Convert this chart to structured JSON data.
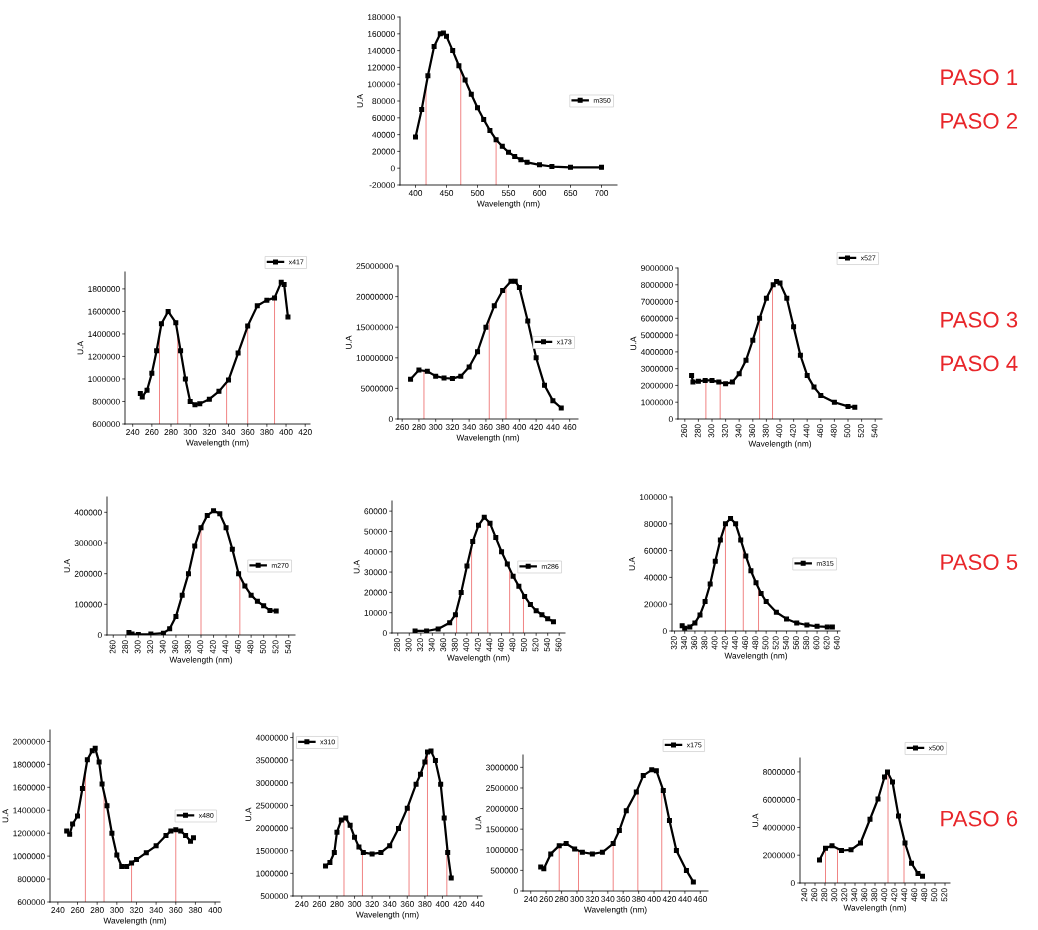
{
  "chart_data": [
    {
      "type": "line",
      "xlabel": "Wavelength (nm)",
      "ylabel": "U.A",
      "xlim": [
        375,
        725
      ],
      "xticks": [
        400,
        450,
        500,
        550,
        600,
        650,
        700
      ],
      "ylim": [
        -20000,
        180000
      ],
      "yticks": [
        -20000,
        0,
        20000,
        40000,
        60000,
        80000,
        100000,
        120000,
        140000,
        160000,
        180000
      ],
      "legend": "right",
      "marker": "square",
      "line_style": "solid",
      "series": [
        {
          "name": "m350",
          "color": "#000000",
          "x": [
            400,
            410,
            420,
            430,
            440,
            445,
            450,
            460,
            470,
            480,
            490,
            500,
            510,
            520,
            530,
            540,
            550,
            560,
            570,
            580,
            600,
            620,
            650,
            700
          ],
          "values": [
            37000,
            70000,
            110000,
            145000,
            160000,
            161000,
            157000,
            140000,
            122000,
            105000,
            88000,
            72000,
            58000,
            45000,
            34000,
            26000,
            19000,
            14000,
            10000,
            7000,
            4000,
            2000,
            1000,
            1000
          ]
        }
      ],
      "ref_lines": [
        {
          "axis": "x",
          "value": 417,
          "color": "#f08080"
        },
        {
          "axis": "x",
          "value": 473,
          "color": "#f08080"
        },
        {
          "axis": "x",
          "value": 530,
          "color": "#f08080"
        }
      ],
      "annotations": [
        "PASO 1",
        "PASO 2"
      ]
    },
    {
      "type": "line",
      "xlabel": "Wavelength (nm)",
      "ylabel": "U.A",
      "xlim": [
        232,
        425
      ],
      "xticks": [
        240,
        260,
        280,
        300,
        320,
        340,
        360,
        380,
        400,
        420
      ],
      "ylim": [
        600000,
        1950000
      ],
      "yticks": [
        600000,
        800000,
        1000000,
        1200000,
        1400000,
        1600000,
        1800000
      ],
      "legend": "top right",
      "marker": "square",
      "line_style": "solid",
      "series": [
        {
          "name": "x417",
          "color": "#000000",
          "x": [
            248,
            250,
            255,
            260,
            265,
            270,
            277,
            285,
            290,
            295,
            300,
            305,
            310,
            320,
            330,
            340,
            350,
            360,
            370,
            380,
            388,
            395,
            398,
            402
          ],
          "values": [
            870000,
            840000,
            900000,
            1050000,
            1250000,
            1490000,
            1600000,
            1500000,
            1250000,
            1000000,
            800000,
            770000,
            780000,
            820000,
            890000,
            990000,
            1230000,
            1470000,
            1650000,
            1700000,
            1720000,
            1860000,
            1840000,
            1550000
          ]
        }
      ],
      "ref_lines": [
        {
          "axis": "x",
          "value": 268,
          "color": "#f08080"
        },
        {
          "axis": "x",
          "value": 287,
          "color": "#f08080"
        },
        {
          "axis": "x",
          "value": 338,
          "color": "#f08080"
        },
        {
          "axis": "x",
          "value": 360,
          "color": "#f08080"
        },
        {
          "axis": "x",
          "value": 388,
          "color": "#f08080"
        }
      ]
    },
    {
      "type": "line",
      "xlabel": "Wavelength (nm)",
      "ylabel": "U.A",
      "xlim": [
        255,
        470
      ],
      "xticks": [
        260,
        280,
        300,
        320,
        340,
        360,
        380,
        400,
        420,
        440,
        460
      ],
      "ylim": [
        0,
        25000000
      ],
      "yticks": [
        0,
        5000000,
        10000000,
        15000000,
        20000000,
        25000000
      ],
      "legend": "right",
      "marker": "square",
      "line_style": "solid",
      "series": [
        {
          "name": "x173",
          "color": "#000000",
          "x": [
            270,
            280,
            290,
            300,
            310,
            320,
            330,
            340,
            350,
            360,
            370,
            380,
            390,
            395,
            400,
            410,
            420,
            430,
            440,
            450
          ],
          "values": [
            6500000,
            8000000,
            7800000,
            7000000,
            6700000,
            6600000,
            7000000,
            8500000,
            11000000,
            15000000,
            18500000,
            21000000,
            22500000,
            22500000,
            21500000,
            16000000,
            10000000,
            5500000,
            3000000,
            1800000
          ]
        }
      ],
      "ref_lines": [
        {
          "axis": "x",
          "value": 286,
          "color": "#f08080"
        },
        {
          "axis": "x",
          "value": 364,
          "color": "#f08080"
        },
        {
          "axis": "x",
          "value": 384,
          "color": "#f08080"
        }
      ]
    },
    {
      "type": "line",
      "xlabel": "Wavelength (nm)",
      "ylabel": "U.A",
      "xlim": [
        250,
        550
      ],
      "xticks": [
        260,
        280,
        300,
        320,
        340,
        360,
        380,
        400,
        420,
        440,
        460,
        480,
        500,
        520,
        540
      ],
      "ylim": [
        0,
        9000000
      ],
      "yticks": [
        0,
        1000000,
        2000000,
        3000000,
        4000000,
        5000000,
        6000000,
        7000000,
        8000000,
        9000000
      ],
      "legend": "top right",
      "marker": "square",
      "line_style": "solid",
      "series": [
        {
          "name": "x527",
          "color": "#000000",
          "x": [
            270,
            272,
            280,
            290,
            300,
            310,
            320,
            330,
            340,
            350,
            360,
            370,
            380,
            390,
            395,
            400,
            410,
            420,
            430,
            440,
            450,
            460,
            480,
            500,
            510
          ],
          "values": [
            2600000,
            2200000,
            2250000,
            2300000,
            2300000,
            2200000,
            2100000,
            2200000,
            2700000,
            3500000,
            4700000,
            6000000,
            7200000,
            8000000,
            8200000,
            8100000,
            7200000,
            5500000,
            3800000,
            2600000,
            1900000,
            1400000,
            1000000,
            750000,
            700000
          ]
        }
      ],
      "ref_lines": [
        {
          "axis": "x",
          "value": 291,
          "color": "#f08080"
        },
        {
          "axis": "x",
          "value": 312,
          "color": "#f08080"
        },
        {
          "axis": "x",
          "value": 370,
          "color": "#f08080"
        },
        {
          "axis": "x",
          "value": 389,
          "color": "#f08080"
        }
      ],
      "annotations": [
        "PASO 3",
        "PASO 4"
      ]
    },
    {
      "type": "line",
      "xlabel": "Wavelength (nm)",
      "ylabel": "U.A",
      "xlim": [
        250,
        550
      ],
      "xticks": [
        260,
        280,
        300,
        320,
        340,
        360,
        380,
        400,
        420,
        440,
        460,
        480,
        500,
        520,
        540
      ],
      "ylim": [
        0,
        450000
      ],
      "yticks": [
        0,
        100000,
        200000,
        300000,
        400000
      ],
      "legend": "right",
      "marker": "square",
      "line_style": "solid",
      "series": [
        {
          "name": "m270",
          "color": "#000000",
          "x": [
            285,
            290,
            300,
            320,
            340,
            350,
            360,
            370,
            380,
            390,
            400,
            410,
            420,
            430,
            440,
            450,
            460,
            470,
            480,
            490,
            500,
            510,
            520
          ],
          "values": [
            8000,
            3000,
            2000,
            3000,
            6000,
            20000,
            60000,
            130000,
            200000,
            290000,
            350000,
            390000,
            405000,
            395000,
            350000,
            280000,
            200000,
            160000,
            130000,
            110000,
            95000,
            80000,
            78000
          ]
        }
      ],
      "ref_lines": [
        {
          "axis": "x",
          "value": 400,
          "color": "#f08080"
        },
        {
          "axis": "x",
          "value": 462,
          "color": "#f08080"
        }
      ]
    },
    {
      "type": "line",
      "xlabel": "Wavelength (nm)",
      "ylabel": "U.A",
      "xlim": [
        270,
        570
      ],
      "xticks": [
        280,
        300,
        320,
        340,
        360,
        380,
        400,
        420,
        440,
        460,
        480,
        500,
        520,
        540,
        560
      ],
      "ylim": [
        0,
        65000
      ],
      "yticks": [
        0,
        10000,
        20000,
        30000,
        40000,
        50000,
        60000
      ],
      "legend": "right",
      "marker": "square",
      "line_style": "solid",
      "series": [
        {
          "name": "m286",
          "color": "#000000",
          "x": [
            310,
            330,
            350,
            370,
            380,
            390,
            400,
            410,
            420,
            430,
            440,
            450,
            460,
            470,
            480,
            490,
            500,
            510,
            520,
            530,
            540,
            550
          ],
          "values": [
            1000,
            1000,
            2000,
            5000,
            9000,
            20000,
            33000,
            45000,
            53000,
            57000,
            54000,
            47000,
            40000,
            34000,
            28000,
            23000,
            18000,
            14000,
            11000,
            9000,
            7000,
            5500
          ]
        }
      ],
      "ref_lines": [
        {
          "axis": "x",
          "value": 382,
          "color": "#f08080"
        },
        {
          "axis": "x",
          "value": 408,
          "color": "#f08080"
        },
        {
          "axis": "x",
          "value": 436,
          "color": "#f08080"
        },
        {
          "axis": "x",
          "value": 474,
          "color": "#f08080"
        },
        {
          "axis": "x",
          "value": 498,
          "color": "#f08080"
        }
      ]
    },
    {
      "type": "line",
      "xlabel": "Wavelength (nm)",
      "ylabel": "U.A",
      "xlim": [
        315,
        645
      ],
      "xticks": [
        320,
        340,
        360,
        380,
        400,
        420,
        440,
        460,
        480,
        500,
        520,
        540,
        560,
        580,
        600,
        620,
        640
      ],
      "ylim": [
        0,
        100000
      ],
      "yticks": [
        0,
        20000,
        40000,
        60000,
        80000,
        100000
      ],
      "legend": "right",
      "marker": "square",
      "line_style": "solid",
      "series": [
        {
          "name": "m315",
          "color": "#000000",
          "x": [
            335,
            340,
            350,
            360,
            370,
            380,
            390,
            400,
            410,
            420,
            430,
            440,
            450,
            460,
            470,
            480,
            490,
            500,
            520,
            540,
            560,
            580,
            600,
            620,
            630
          ],
          "values": [
            4000,
            2000,
            3000,
            6000,
            12000,
            22000,
            35000,
            52000,
            68000,
            80000,
            84000,
            80000,
            68000,
            56000,
            45000,
            36000,
            28000,
            22000,
            14000,
            9000,
            6000,
            4500,
            3500,
            3000,
            3000
          ]
        }
      ],
      "ref_lines": [
        {
          "axis": "x",
          "value": 420,
          "color": "#f08080"
        },
        {
          "axis": "x",
          "value": 455,
          "color": "#f08080"
        },
        {
          "axis": "x",
          "value": 485,
          "color": "#f08080"
        }
      ],
      "annotations": [
        "PASO 5"
      ]
    },
    {
      "type": "line",
      "xlabel": "Wavelength (nm)",
      "ylabel": "U.A",
      "xlim": [
        232,
        405
      ],
      "xticks": [
        240,
        260,
        280,
        300,
        320,
        340,
        360,
        380,
        400
      ],
      "ylim": [
        600000,
        2100000
      ],
      "yticks": [
        600000,
        800000,
        1000000,
        1200000,
        1400000,
        1600000,
        1800000,
        2000000
      ],
      "legend": "right",
      "marker": "square",
      "line_style": "solid",
      "series": [
        {
          "name": "x480",
          "color": "#000000",
          "x": [
            249,
            252,
            255,
            260,
            265,
            270,
            275,
            278,
            282,
            285,
            290,
            295,
            300,
            305,
            310,
            315,
            320,
            330,
            340,
            350,
            355,
            360,
            365,
            370,
            375,
            378
          ],
          "values": [
            1220000,
            1190000,
            1280000,
            1350000,
            1590000,
            1840000,
            1920000,
            1940000,
            1820000,
            1630000,
            1440000,
            1200000,
            1010000,
            910000,
            910000,
            940000,
            970000,
            1030000,
            1090000,
            1180000,
            1220000,
            1230000,
            1220000,
            1180000,
            1130000,
            1160000
          ]
        }
      ],
      "ref_lines": [
        {
          "axis": "x",
          "value": 268,
          "color": "#f08080"
        },
        {
          "axis": "x",
          "value": 287,
          "color": "#f08080"
        },
        {
          "axis": "x",
          "value": 315,
          "color": "#f08080"
        },
        {
          "axis": "x",
          "value": 360,
          "color": "#f08080"
        }
      ]
    },
    {
      "type": "line",
      "xlabel": "Wavelength (nm)",
      "ylabel": "U.A",
      "xlim": [
        230,
        445
      ],
      "xticks": [
        240,
        260,
        280,
        300,
        320,
        340,
        360,
        380,
        400,
        420,
        440
      ],
      "ylim": [
        500000,
        4100000
      ],
      "yticks": [
        500000,
        1000000,
        1500000,
        2000000,
        2500000,
        3000000,
        3500000,
        4000000
      ],
      "legend": "top left",
      "marker": "square",
      "line_style": "solid",
      "series": [
        {
          "name": "x310",
          "color": "#000000",
          "x": [
            267,
            272,
            277,
            280,
            285,
            290,
            295,
            300,
            305,
            310,
            320,
            330,
            340,
            350,
            360,
            370,
            375,
            380,
            383,
            387,
            392,
            398,
            402,
            406,
            410
          ],
          "values": [
            1160000,
            1240000,
            1460000,
            1910000,
            2180000,
            2220000,
            2060000,
            1800000,
            1580000,
            1460000,
            1430000,
            1460000,
            1610000,
            1990000,
            2440000,
            2970000,
            3190000,
            3460000,
            3680000,
            3700000,
            3490000,
            2970000,
            2220000,
            1460000,
            900000
          ]
        }
      ],
      "ref_lines": [
        {
          "axis": "x",
          "value": 288,
          "color": "#f08080"
        },
        {
          "axis": "x",
          "value": 309,
          "color": "#f08080"
        },
        {
          "axis": "x",
          "value": 362,
          "color": "#f08080"
        },
        {
          "axis": "x",
          "value": 383,
          "color": "#f08080"
        },
        {
          "axis": "x",
          "value": 405,
          "color": "#f08080"
        }
      ]
    },
    {
      "type": "line",
      "xlabel": "Wavelength (nm)",
      "ylabel": "U.A",
      "xlim": [
        230,
        470
      ],
      "xticks": [
        240,
        260,
        280,
        300,
        320,
        340,
        360,
        380,
        400,
        420,
        440,
        460
      ],
      "ylim": [
        0,
        3300000
      ],
      "yticks": [
        0,
        500000,
        1000000,
        1500000,
        2000000,
        2500000,
        3000000
      ],
      "legend": "top right",
      "marker": "square",
      "line_style": "solid",
      "series": [
        {
          "name": "x175",
          "color": "#000000",
          "x": [
            253,
            257,
            266,
            277,
            286,
            297,
            307,
            320,
            333,
            347,
            355,
            364,
            377,
            386,
            397,
            403,
            412,
            420,
            429,
            442,
            451
          ],
          "values": [
            580000,
            540000,
            900000,
            1100000,
            1150000,
            1020000,
            940000,
            900000,
            940000,
            1150000,
            1470000,
            1950000,
            2400000,
            2800000,
            2940000,
            2920000,
            2440000,
            1710000,
            980000,
            500000,
            220000
          ]
        }
      ],
      "ref_lines": [
        {
          "axis": "x",
          "value": 277,
          "color": "#f08080"
        },
        {
          "axis": "x",
          "value": 302,
          "color": "#f08080"
        },
        {
          "axis": "x",
          "value": 347,
          "color": "#f08080"
        },
        {
          "axis": "x",
          "value": 379,
          "color": "#f08080"
        },
        {
          "axis": "x",
          "value": 410,
          "color": "#f08080"
        }
      ]
    },
    {
      "type": "line",
      "xlabel": "Wavelength (nm)",
      "ylabel": "U.A",
      "xlim": [
        230,
        530
      ],
      "xticks": [
        240,
        260,
        280,
        300,
        320,
        340,
        360,
        380,
        400,
        420,
        440,
        460,
        480,
        500,
        520
      ],
      "ylim": [
        0,
        9000000
      ],
      "yticks": [
        0,
        2000000,
        4000000,
        6000000,
        8000000
      ],
      "legend": "top right",
      "marker": "square",
      "line_style": "solid",
      "series": [
        {
          "name": "x500",
          "color": "#000000",
          "x": [
            269,
            281,
            294,
            313,
            332,
            351,
            370,
            386,
            399,
            405,
            415,
            427,
            440,
            453,
            466,
            475
          ],
          "values": [
            1660000,
            2510000,
            2680000,
            2340000,
            2390000,
            2880000,
            4590000,
            6050000,
            7630000,
            8000000,
            7270000,
            4830000,
            2880000,
            1420000,
            680000,
            490000
          ]
        }
      ],
      "ref_lines": [
        {
          "axis": "x",
          "value": 281,
          "color": "#f08080"
        },
        {
          "axis": "x",
          "value": 305,
          "color": "#f08080"
        },
        {
          "axis": "x",
          "value": 406,
          "color": "#f08080"
        },
        {
          "axis": "x",
          "value": 438,
          "color": "#f08080"
        }
      ],
      "annotations": [
        "PASO 6"
      ]
    }
  ]
}
